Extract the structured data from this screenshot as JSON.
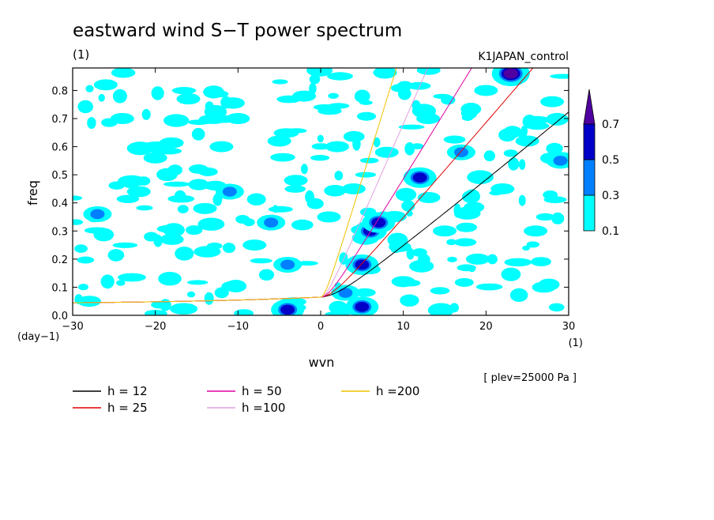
{
  "chart_data": {
    "type": "heatmap",
    "title": "eastward wind S−T power spectrum",
    "subtitle_left": "(1)",
    "subtitle_right": "K1JAPAN_control",
    "xlabel": "wvn",
    "ylabel": "freq",
    "x_unit": "(1)",
    "y_unit": "(day−1)",
    "xlim": [
      -30,
      30
    ],
    "ylim": [
      0,
      0.88
    ],
    "x_ticks": [
      -30,
      -20,
      -10,
      0,
      10,
      20,
      30
    ],
    "x_tick_labels": [
      "−30",
      "−20",
      "−10",
      "0",
      "10",
      "20",
      "30"
    ],
    "y_ticks": [
      0,
      0.1,
      0.2,
      0.3,
      0.4,
      0.5,
      0.6,
      0.7,
      0.8
    ],
    "y_tick_labels": [
      "0.0",
      "0.1",
      "0.2",
      "0.3",
      "0.4",
      "0.5",
      "0.6",
      "0.7",
      "0.8"
    ],
    "annotation": "[ plev=25000 Pa ]",
    "colorbar": {
      "levels": [
        "0.1",
        "0.3",
        "0.5",
        "0.7"
      ],
      "colors": [
        "#00ffff",
        "#0080ff",
        "#0000c8",
        "#5000a0"
      ]
    },
    "contour_blobs": [
      {
        "x": -28,
        "y": 0.05,
        "level": 0
      },
      {
        "x": -27,
        "y": 0.36,
        "level": 1
      },
      {
        "x": -26,
        "y": 0.82,
        "level": 0
      },
      {
        "x": -24,
        "y": 0.7,
        "level": 0
      },
      {
        "x": -22,
        "y": 0.44,
        "level": 0
      },
      {
        "x": -20,
        "y": 0.56,
        "level": 0
      },
      {
        "x": -18,
        "y": 0.27,
        "level": 0
      },
      {
        "x": -16,
        "y": 0.77,
        "level": 0
      },
      {
        "x": -14,
        "y": 0.38,
        "level": 0
      },
      {
        "x": -12,
        "y": 0.6,
        "level": 0
      },
      {
        "x": -11,
        "y": 0.44,
        "level": 1
      },
      {
        "x": -10,
        "y": 0.7,
        "level": 0
      },
      {
        "x": -8,
        "y": 0.25,
        "level": 0
      },
      {
        "x": -6,
        "y": 0.33,
        "level": 1
      },
      {
        "x": -5,
        "y": 0.62,
        "level": 0
      },
      {
        "x": -4,
        "y": 0.02,
        "level": 2
      },
      {
        "x": -4,
        "y": 0.18,
        "level": 1
      },
      {
        "x": -3,
        "y": 0.48,
        "level": 0
      },
      {
        "x": -2,
        "y": 0.78,
        "level": 0
      },
      {
        "x": 1,
        "y": 0.35,
        "level": 0
      },
      {
        "x": 2,
        "y": 0.6,
        "level": 0
      },
      {
        "x": 3,
        "y": 0.08,
        "level": 1
      },
      {
        "x": 4,
        "y": 0.45,
        "level": 0
      },
      {
        "x": 5,
        "y": 0.03,
        "level": 2
      },
      {
        "x": 5,
        "y": 0.18,
        "level": 2
      },
      {
        "x": 6,
        "y": 0.3,
        "level": 2
      },
      {
        "x": 7,
        "y": 0.33,
        "level": 2
      },
      {
        "x": 8,
        "y": 0.58,
        "level": 0
      },
      {
        "x": 10,
        "y": 0.12,
        "level": 0
      },
      {
        "x": 12,
        "y": 0.49,
        "level": 2
      },
      {
        "x": 13,
        "y": 0.7,
        "level": 0
      },
      {
        "x": 15,
        "y": 0.3,
        "level": 0
      },
      {
        "x": 17,
        "y": 0.58,
        "level": 1
      },
      {
        "x": 19,
        "y": 0.2,
        "level": 0
      },
      {
        "x": 20,
        "y": 0.8,
        "level": 0
      },
      {
        "x": 22,
        "y": 0.45,
        "level": 0
      },
      {
        "x": 23,
        "y": 0.86,
        "level": 3
      },
      {
        "x": 25,
        "y": 0.62,
        "level": 0
      },
      {
        "x": 26,
        "y": 0.3,
        "level": 0
      },
      {
        "x": 27,
        "y": 0.1,
        "level": 0
      },
      {
        "x": 28,
        "y": 0.76,
        "level": 0
      },
      {
        "x": 29,
        "y": 0.55,
        "level": 1
      }
    ],
    "series": [
      {
        "name": "h = 12",
        "h": 12,
        "color": "#000000"
      },
      {
        "name": "h = 25",
        "h": 25,
        "color": "#e00000"
      },
      {
        "name": "h = 50",
        "h": 50,
        "color": "#e000a0"
      },
      {
        "name": "h =100",
        "h": 100,
        "color": "#e0a0e0"
      },
      {
        "name": "h =200",
        "h": 200,
        "color": "#f0c000"
      }
    ]
  }
}
